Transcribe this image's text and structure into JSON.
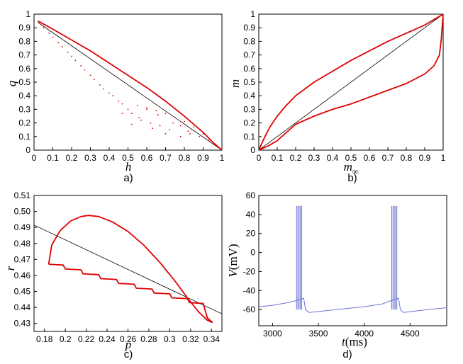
{
  "chart_data": [
    {
      "type": "scatter",
      "id": "a",
      "caption": "a)",
      "xlabel": "h",
      "ylabel": "q",
      "xlim": [
        0,
        1
      ],
      "ylim": [
        0,
        1
      ],
      "xticks": [
        "0",
        "0.1",
        "0.2",
        "0.3",
        "0.4",
        "0.5",
        "0.6",
        "0.7",
        "0.8",
        "0.9",
        "1"
      ],
      "yticks": [
        "0",
        "0.1",
        "0.2",
        "0.3",
        "0.4",
        "0.5",
        "0.6",
        "0.7",
        "0.8",
        "0.9",
        "1"
      ],
      "series": [
        {
          "name": "diagonal",
          "kind": "line",
          "color": "#000000",
          "x": [
            0.02,
            1.0
          ],
          "y": [
            0.94,
            0.0
          ]
        },
        {
          "name": "upper branch",
          "kind": "line",
          "color": "#e00000",
          "x": [
            0.02,
            0.1,
            0.2,
            0.3,
            0.4,
            0.5,
            0.6,
            0.7,
            0.8,
            0.9,
            0.95,
            1.0
          ],
          "y": [
            0.95,
            0.89,
            0.81,
            0.73,
            0.64,
            0.55,
            0.46,
            0.36,
            0.25,
            0.13,
            0.06,
            0.0
          ]
        },
        {
          "name": "scattered points",
          "kind": "points",
          "color": "#e00000",
          "x": [
            0.05,
            0.08,
            0.1,
            0.13,
            0.15,
            0.18,
            0.2,
            0.22,
            0.25,
            0.27,
            0.3,
            0.32,
            0.35,
            0.37,
            0.4,
            0.42,
            0.45,
            0.47,
            0.5,
            0.52,
            0.55,
            0.57,
            0.6,
            0.62,
            0.65,
            0.67,
            0.7,
            0.72,
            0.75,
            0.78,
            0.8,
            0.82,
            0.85,
            0.88,
            0.9,
            0.93,
            0.96,
            0.98,
            0.47,
            0.52,
            0.56,
            0.6,
            0.63,
            0.66,
            0.7,
            0.74,
            0.78,
            0.83
          ],
          "y": [
            0.9,
            0.86,
            0.83,
            0.79,
            0.76,
            0.72,
            0.69,
            0.66,
            0.62,
            0.59,
            0.55,
            0.52,
            0.48,
            0.45,
            0.42,
            0.4,
            0.36,
            0.34,
            0.3,
            0.27,
            0.33,
            0.22,
            0.31,
            0.2,
            0.29,
            0.18,
            0.27,
            0.15,
            0.24,
            0.18,
            0.21,
            0.14,
            0.17,
            0.1,
            0.12,
            0.07,
            0.04,
            0.02,
            0.27,
            0.19,
            0.24,
            0.3,
            0.16,
            0.26,
            0.12,
            0.2,
            0.1,
            0.12
          ]
        }
      ]
    },
    {
      "type": "scatter",
      "id": "b",
      "caption": "b)",
      "xlabel": "m",
      "xlabel_sub": "∞",
      "ylabel": "m",
      "xlim": [
        0,
        1
      ],
      "ylim": [
        0,
        1
      ],
      "xticks": [
        "0",
        "0.1",
        "0.2",
        "0.3",
        "0.4",
        "0.5",
        "0.6",
        "0.7",
        "0.8",
        "0.9",
        "1"
      ],
      "yticks": [
        "0",
        "0.1",
        "0.2",
        "0.3",
        "0.4",
        "0.5",
        "0.6",
        "0.7",
        "0.8",
        "0.9",
        "1"
      ],
      "series": [
        {
          "name": "diagonal",
          "kind": "line",
          "color": "#000000",
          "x": [
            0.0,
            1.0
          ],
          "y": [
            0.0,
            1.0
          ]
        },
        {
          "name": "upper curve",
          "kind": "line",
          "color": "#e00000",
          "x": [
            0.0,
            0.03,
            0.06,
            0.1,
            0.15,
            0.2,
            0.3,
            0.4,
            0.5,
            0.6,
            0.7,
            0.8,
            0.9,
            0.95,
            1.0
          ],
          "y": [
            0.0,
            0.09,
            0.17,
            0.25,
            0.33,
            0.4,
            0.5,
            0.58,
            0.66,
            0.73,
            0.8,
            0.86,
            0.92,
            0.96,
            1.0
          ]
        },
        {
          "name": "lower curve",
          "kind": "line",
          "color": "#e00000",
          "x": [
            0.0,
            0.05,
            0.1,
            0.15,
            0.2,
            0.3,
            0.4,
            0.5,
            0.6,
            0.7,
            0.8,
            0.9,
            0.95,
            0.98,
            0.99,
            1.0
          ],
          "y": [
            0.0,
            0.03,
            0.07,
            0.13,
            0.19,
            0.25,
            0.3,
            0.34,
            0.39,
            0.44,
            0.49,
            0.56,
            0.62,
            0.7,
            0.82,
            1.0
          ]
        }
      ]
    },
    {
      "type": "line",
      "id": "c",
      "caption": "c)",
      "xlabel": "p",
      "ylabel": "r",
      "xlim": [
        0.17,
        0.35
      ],
      "ylim": [
        0.425,
        0.51
      ],
      "xticks": [
        "0.18",
        "0.2",
        "0.22",
        "0.24",
        "0.26",
        "0.28",
        "0.3",
        "0.32",
        "0.34"
      ],
      "yticks": [
        "0.43",
        "0.44",
        "0.45",
        "0.46",
        "0.47",
        "0.48",
        "0.49",
        "0.50",
        "0.51"
      ],
      "series": [
        {
          "name": "reference line",
          "kind": "line",
          "color": "#000000",
          "x": [
            0.17,
            0.35
          ],
          "y": [
            0.4915,
            0.436
          ]
        },
        {
          "name": "upper loop",
          "kind": "line",
          "color": "#e00000",
          "x": [
            0.184,
            0.187,
            0.195,
            0.205,
            0.215,
            0.222,
            0.232,
            0.245,
            0.26,
            0.275,
            0.29,
            0.305,
            0.318,
            0.328,
            0.336,
            0.341
          ],
          "y": [
            0.467,
            0.479,
            0.488,
            0.494,
            0.4968,
            0.4975,
            0.4968,
            0.4935,
            0.4875,
            0.479,
            0.4685,
            0.4565,
            0.445,
            0.437,
            0.432,
            0.4305
          ]
        },
        {
          "name": "lower staircase",
          "kind": "line",
          "color": "#e00000",
          "x": [
            0.184,
            0.198,
            0.2,
            0.215,
            0.217,
            0.232,
            0.234,
            0.249,
            0.251,
            0.266,
            0.268,
            0.283,
            0.285,
            0.3,
            0.302,
            0.317,
            0.319,
            0.332,
            0.336,
            0.341
          ],
          "y": [
            0.467,
            0.4665,
            0.464,
            0.4635,
            0.461,
            0.4605,
            0.458,
            0.4575,
            0.455,
            0.4545,
            0.452,
            0.4515,
            0.449,
            0.4485,
            0.446,
            0.4455,
            0.443,
            0.4425,
            0.4335,
            0.4305
          ]
        }
      ]
    },
    {
      "type": "line",
      "id": "d",
      "caption": "d)",
      "xlabel": "t",
      "xlabel_unit": "(ms)",
      "ylabel": "V",
      "ylabel_unit": "(mV)",
      "xlim": [
        2850,
        4900
      ],
      "ylim": [
        -77,
        60
      ],
      "xticks": [
        "3000",
        "3500",
        "4000",
        "4500"
      ],
      "xtick_values": [
        3000,
        3500,
        4000,
        4500
      ],
      "yticks": [
        "-60",
        "-40",
        "-20",
        "0",
        "20",
        "40",
        "60"
      ],
      "ytick_values": [
        -60,
        -40,
        -20,
        0,
        20,
        40,
        60
      ],
      "baseline": {
        "x": [
          2850,
          3240
        ],
        "y": [
          -57,
          -51
        ]
      },
      "burst_times": [
        [
          3262,
          3276,
          3290,
          3304,
          3318
        ],
        [
          4300,
          4314,
          4328,
          4342,
          4356
        ]
      ],
      "spike_peak": 49,
      "spike_trough": -60,
      "series": [
        {
          "name": "membrane potential",
          "kind": "line",
          "color": "#6d74d6",
          "x": [
            2850,
            3000,
            3150,
            3240,
            3340,
            3360,
            3400,
            3600,
            3800,
            4000,
            4200,
            4280,
            4375,
            4395,
            4430,
            4600,
            4900
          ],
          "y": [
            -57,
            -55.5,
            -53,
            -51,
            -48,
            -60,
            -63,
            -61,
            -59,
            -57,
            -54,
            -51,
            -48,
            -60,
            -63,
            -61,
            -58
          ]
        }
      ]
    }
  ]
}
